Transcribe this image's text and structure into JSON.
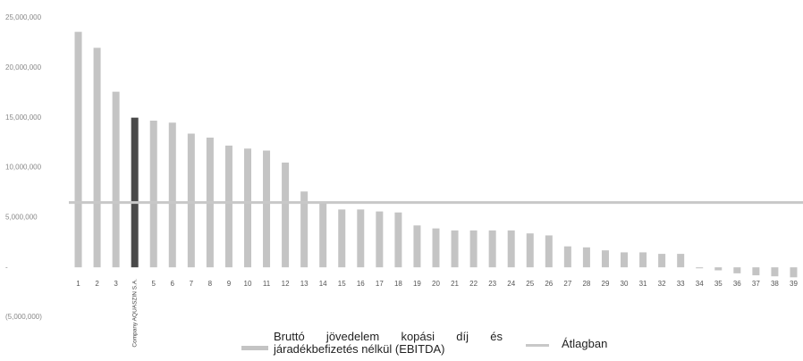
{
  "chart_data": {
    "type": "bar",
    "categories": [
      "1",
      "2",
      "3",
      "Company AQUASZIN S.A.",
      "5",
      "6",
      "7",
      "8",
      "9",
      "10",
      "11",
      "12",
      "13",
      "14",
      "15",
      "16",
      "17",
      "18",
      "19",
      "20",
      "21",
      "22",
      "23",
      "24",
      "25",
      "26",
      "27",
      "28",
      "29",
      "30",
      "31",
      "32",
      "33",
      "34",
      "35",
      "36",
      "37",
      "38",
      "39"
    ],
    "series": [
      {
        "name": "Bruttó jövedelem kopási díj és járadékbefizetés nélkül (EBITDA)",
        "color": "#c4c4c4",
        "values": [
          23600000,
          22000000,
          17600000,
          15000000,
          14700000,
          14500000,
          13400000,
          13000000,
          12200000,
          11900000,
          11700000,
          10500000,
          7600000,
          6500000,
          5800000,
          5800000,
          5600000,
          5500000,
          4200000,
          3900000,
          3700000,
          3700000,
          3700000,
          3700000,
          3400000,
          3200000,
          2100000,
          2000000,
          1700000,
          1500000,
          1500000,
          1350000,
          1350000,
          -100000,
          -300000,
          -600000,
          -800000,
          -900000,
          -1000000
        ]
      }
    ],
    "highlight": {
      "index": 3,
      "color": "#4a4a4a"
    },
    "average": {
      "name": "Átlagban",
      "value": 6500000,
      "color": "#c8c8c8"
    },
    "ylim": [
      -5000000,
      25000000
    ],
    "yticks": [
      {
        "value": -5000000,
        "label": "(5,000,000)"
      },
      {
        "value": 0,
        "label": "-"
      },
      {
        "value": 5000000,
        "label": "5,000,000"
      },
      {
        "value": 10000000,
        "label": "10,000,000"
      },
      {
        "value": 15000000,
        "label": "15,000,000"
      },
      {
        "value": 20000000,
        "label": "20,000,000"
      },
      {
        "value": 25000000,
        "label": "25,000,000"
      }
    ]
  }
}
